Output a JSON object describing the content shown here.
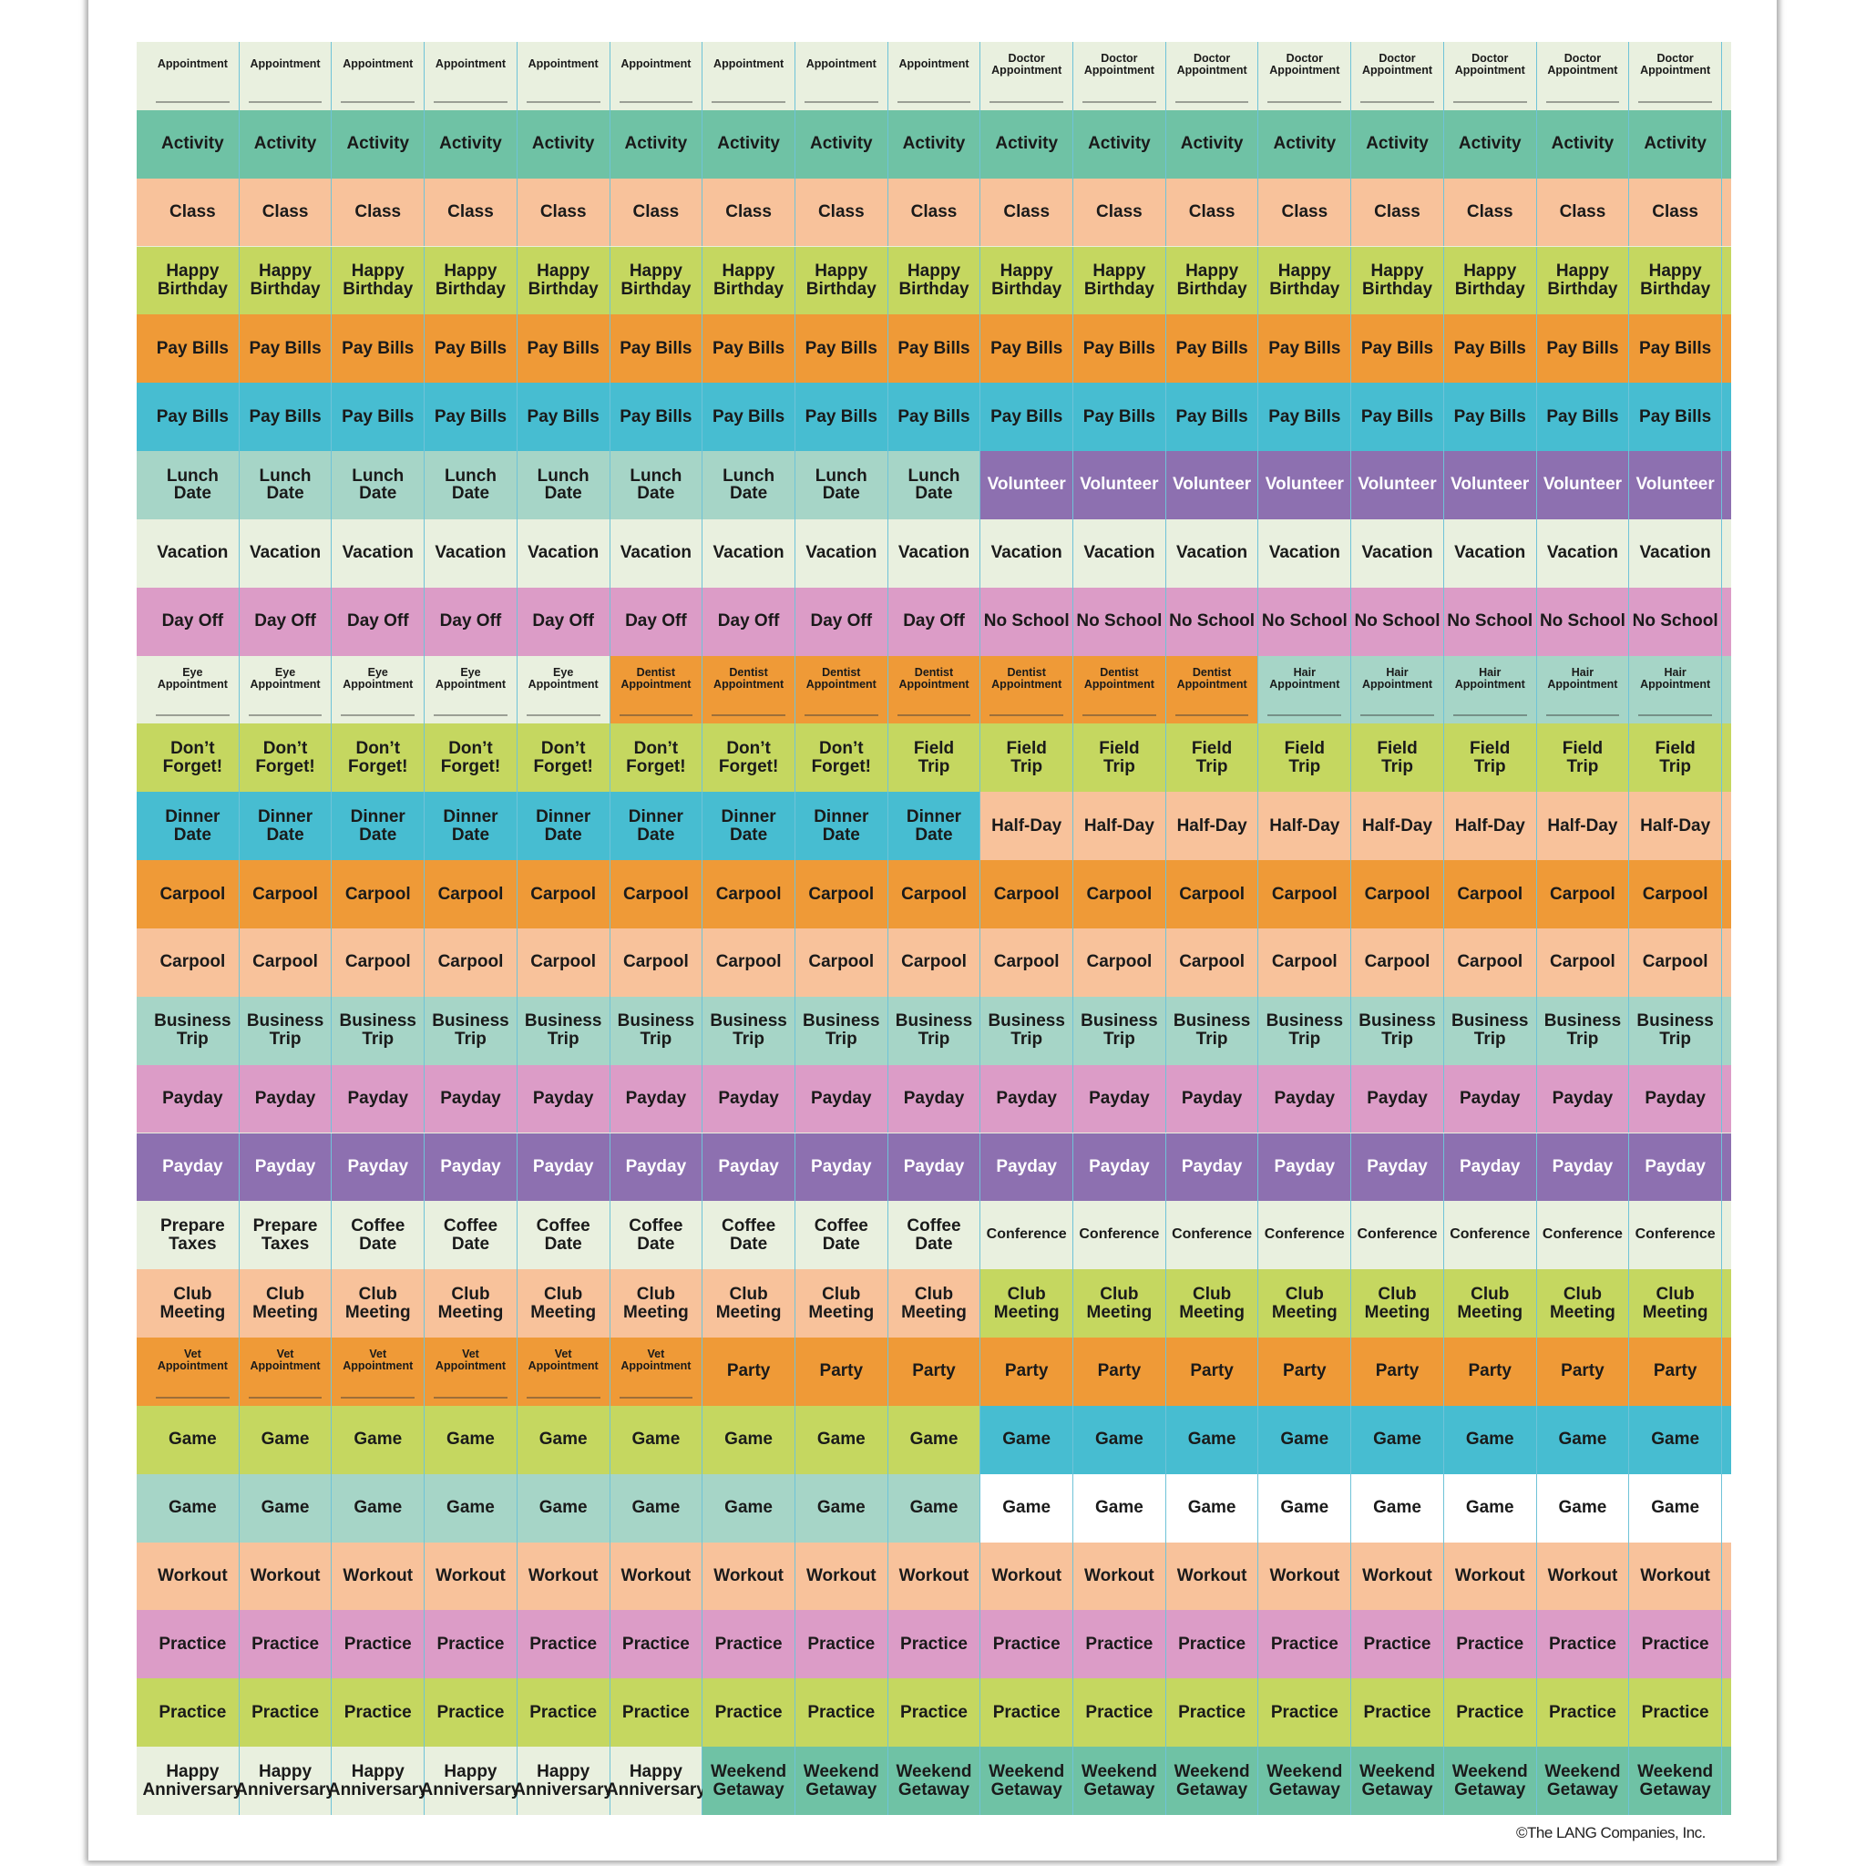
{
  "colors": {
    "pale": "#e9f0df",
    "teal": "#6fc2a5",
    "peach": "#f8c29b",
    "lime": "#c5d760",
    "orange": "#ef9a37",
    "cyan": "#47bdd1",
    "lightteal": "#a6d5c7",
    "purple": "#8d70b0",
    "pink": "#dc9cc7",
    "white": "#ffffff"
  },
  "rows": [
    [
      {
        "text": "Appointment",
        "count": 9,
        "color": "pale",
        "style": "small"
      },
      {
        "text": "Doctor Appointment",
        "count": 8,
        "color": "pale",
        "style": "small wrap"
      }
    ],
    [
      {
        "text": "Activity",
        "count": 17,
        "color": "teal"
      }
    ],
    [
      {
        "text": "Class",
        "count": 17,
        "color": "peach"
      }
    ],
    [
      {
        "text": "Happy Birthday",
        "count": 17,
        "color": "lime",
        "style": "wrap"
      }
    ],
    [
      {
        "text": "Pay Bills",
        "count": 17,
        "color": "orange"
      }
    ],
    [
      {
        "text": "Pay Bills",
        "count": 17,
        "color": "cyan"
      }
    ],
    [
      {
        "text": "Lunch Date",
        "count": 9,
        "color": "lightteal",
        "style": "wrap"
      },
      {
        "text": "Volunteer",
        "count": 8,
        "color": "purple",
        "style": "light"
      }
    ],
    [
      {
        "text": "Vacation",
        "count": 17,
        "color": "pale"
      }
    ],
    [
      {
        "text": "Day Off",
        "count": 9,
        "color": "pink"
      },
      {
        "text": "No School",
        "count": 8,
        "color": "pink"
      }
    ],
    [
      {
        "text": "Eye Appointment",
        "count": 5,
        "color": "pale",
        "style": "small wrap"
      },
      {
        "text": "Dentist Appointment",
        "count": 7,
        "color": "orange",
        "style": "small wrap"
      },
      {
        "text": "Hair Appointment",
        "count": 5,
        "color": "lightteal",
        "style": "small wrap"
      }
    ],
    [
      {
        "text": "Don’t Forget!",
        "count": 8,
        "color": "lime",
        "style": "wrap"
      },
      {
        "text": "Field Trip",
        "count": 9,
        "color": "lime",
        "style": "wrap"
      }
    ],
    [
      {
        "text": "Dinner Date",
        "count": 9,
        "color": "cyan",
        "style": "wrap"
      },
      {
        "text": "Half-Day",
        "count": 8,
        "color": "peach"
      }
    ],
    [
      {
        "text": "Carpool",
        "count": 17,
        "color": "orange"
      }
    ],
    [
      {
        "text": "Carpool",
        "count": 17,
        "color": "peach"
      }
    ],
    [
      {
        "text": "Business Trip",
        "count": 17,
        "color": "lightteal",
        "style": "wrap"
      }
    ],
    [
      {
        "text": "Payday",
        "count": 17,
        "color": "pink"
      }
    ],
    [
      {
        "text": "Payday",
        "count": 17,
        "color": "purple",
        "style": "light"
      }
    ],
    [
      {
        "text": "Prepare Taxes",
        "count": 2,
        "color": "pale",
        "style": "wrap"
      },
      {
        "text": "Coffee Date",
        "count": 7,
        "color": "pale",
        "style": "wrap"
      },
      {
        "text": "Conference",
        "count": 8,
        "color": "pale",
        "style": "mid"
      }
    ],
    [
      {
        "text": "Club Meeting",
        "count": 9,
        "color": "peach",
        "style": "wrap"
      },
      {
        "text": "Club Meeting",
        "count": 8,
        "color": "lime",
        "style": "wrap"
      }
    ],
    [
      {
        "text": "Vet Appointment",
        "count": 6,
        "color": "orange",
        "style": "small wrap"
      },
      {
        "text": "Party",
        "count": 11,
        "color": "orange"
      }
    ],
    [
      {
        "text": "Game",
        "count": 9,
        "color": "lime"
      },
      {
        "text": "Game",
        "count": 8,
        "color": "cyan"
      }
    ],
    [
      {
        "text": "Game",
        "count": 9,
        "color": "lightteal"
      },
      {
        "text": "Game",
        "count": 8,
        "color": "white"
      }
    ],
    [
      {
        "text": "Workout",
        "count": 17,
        "color": "peach"
      }
    ],
    [
      {
        "text": "Practice",
        "count": 17,
        "color": "pink"
      }
    ],
    [
      {
        "text": "Practice",
        "count": 17,
        "color": "lime"
      }
    ],
    [
      {
        "text": "Happy Anniversary",
        "count": 6,
        "color": "pale",
        "style": "wrap"
      },
      {
        "text": "Weekend Getaway",
        "count": 11,
        "color": "teal",
        "style": "wrap"
      }
    ]
  ],
  "copyright": "©The LANG Companies, Inc."
}
